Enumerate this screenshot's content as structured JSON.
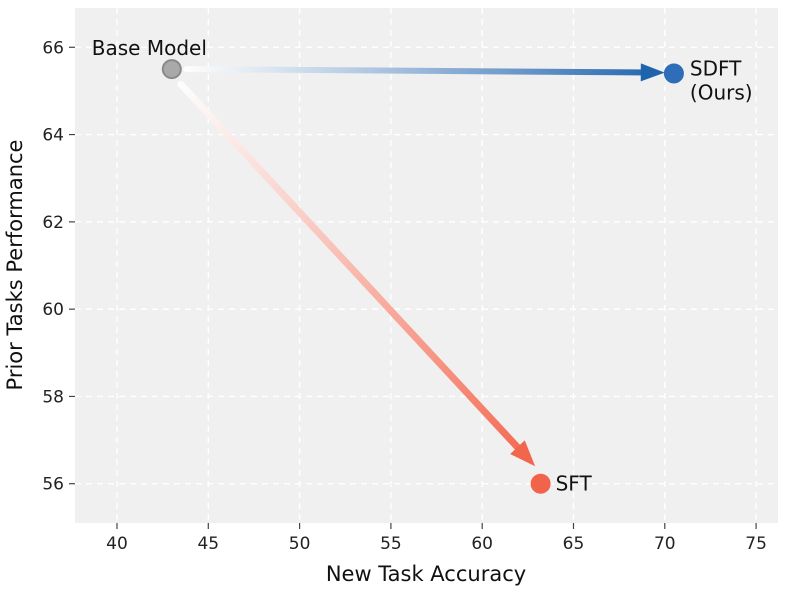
{
  "chart_data": {
    "type": "scatter",
    "title": "",
    "xlabel": "New Task Accuracy",
    "ylabel": "Prior Tasks Performance",
    "xlim": [
      37.7,
      76.2
    ],
    "ylim": [
      55.1,
      66.9
    ],
    "x_ticks": [
      40,
      45,
      50,
      55,
      60,
      65,
      70,
      75
    ],
    "y_ticks": [
      56,
      58,
      60,
      62,
      64,
      66
    ],
    "grid": true,
    "grid_style": "dashed",
    "plot_background": "#f0f0f0",
    "grid_color": "#ffffff",
    "legend": "none",
    "points": [
      {
        "id": "base-model",
        "label_lines": [
          "Base Model"
        ],
        "x": 43.0,
        "y": 65.5,
        "color": "#a9a9a9",
        "edge_color": "#8a8a8a",
        "label_dx": -80,
        "label_dys": [
          -14
        ]
      },
      {
        "id": "sdft",
        "label_lines": [
          "SDFT",
          "(Ours)"
        ],
        "x": 70.5,
        "y": 65.4,
        "color": "#2e6db8",
        "edge_color": "#2e6db8",
        "label_dx": 16,
        "label_dys": [
          2,
          26
        ]
      },
      {
        "id": "sft",
        "label_lines": [
          "SFT"
        ],
        "x": 63.2,
        "y": 56.0,
        "color": "#f2634c",
        "edge_color": "#f2634c",
        "label_dx": 15,
        "label_dys": [
          7
        ]
      }
    ],
    "arrows": [
      {
        "id": "arrow-sdft",
        "from": [
          43.8,
          65.5
        ],
        "to": [
          70.0,
          65.42
        ],
        "start_color": "#ffffff",
        "end_color": "#1f63ad",
        "width": 6,
        "head_len": 24,
        "head_halfwidth": 9
      },
      {
        "id": "arrow-sft",
        "from": [
          43.5,
          65.15
        ],
        "to": [
          62.9,
          56.4
        ],
        "start_color": "#ffffff",
        "end_color": "#f3664e",
        "width": 7,
        "head_len": 26,
        "head_halfwidth": 10
      }
    ]
  }
}
